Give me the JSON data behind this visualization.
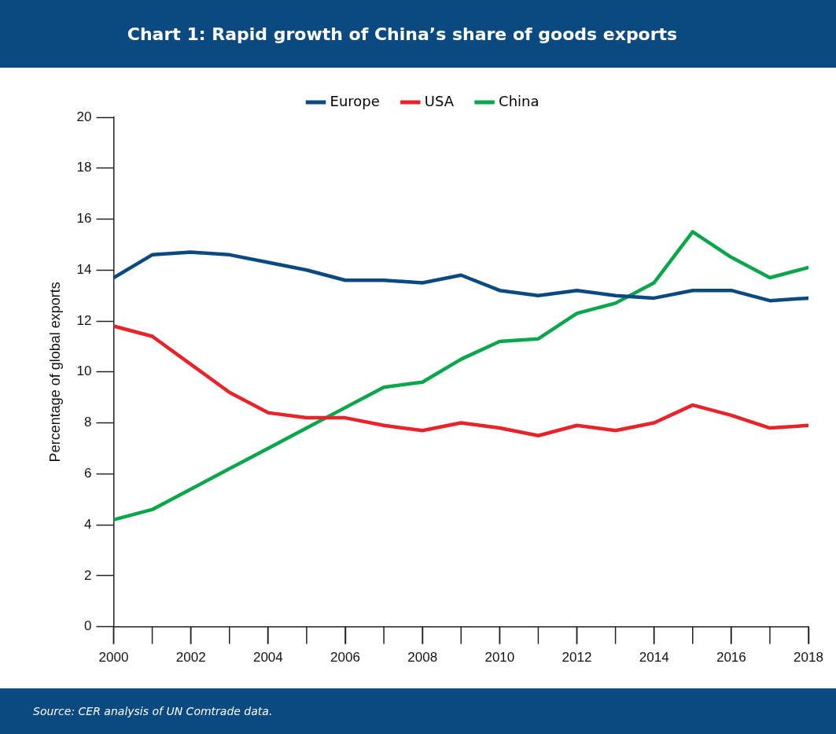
{
  "chart_data": {
    "type": "line",
    "title": "Chart 1: Rapid growth of China’s share of goods exports",
    "ylabel": "Percentage of global exports",
    "annotations": [
      "Source: CER analysis of UN Comtrade data."
    ],
    "x": [
      2000,
      2001,
      2002,
      2003,
      2004,
      2005,
      2006,
      2007,
      2008,
      2009,
      2010,
      2011,
      2012,
      2013,
      2014,
      2015,
      2016,
      2017,
      2018
    ],
    "series": [
      {
        "name": "Europe",
        "color": "#0a4a80",
        "values": [
          13.7,
          14.6,
          14.7,
          14.6,
          14.3,
          14.0,
          13.6,
          13.6,
          13.5,
          13.8,
          13.2,
          13.0,
          13.2,
          13.0,
          12.9,
          13.2,
          13.2,
          12.8,
          12.9
        ]
      },
      {
        "name": "USA",
        "color": "#e8232a",
        "values": [
          11.8,
          11.4,
          10.3,
          9.2,
          8.4,
          8.2,
          8.2,
          7.9,
          7.7,
          8.0,
          7.8,
          7.5,
          7.9,
          7.7,
          8.0,
          8.7,
          8.3,
          7.8,
          7.9
        ]
      },
      {
        "name": "China",
        "color": "#0aa64b",
        "values": [
          4.2,
          4.6,
          5.4,
          6.2,
          7.0,
          7.8,
          8.6,
          9.4,
          9.6,
          10.5,
          11.2,
          11.3,
          12.3,
          12.7,
          13.5,
          15.5,
          14.5,
          13.7,
          14.1
        ]
      }
    ],
    "xlim": [
      2000,
      2018
    ],
    "xticks": [
      2000,
      2002,
      2004,
      2006,
      2008,
      2010,
      2012,
      2014,
      2016,
      2018
    ],
    "ylim": [
      0,
      20
    ],
    "yticks": [
      0,
      2,
      4,
      6,
      8,
      10,
      12,
      14,
      16,
      18,
      20
    ],
    "grid": false,
    "legend": "top",
    "marker": "none",
    "line_style": "solid"
  }
}
